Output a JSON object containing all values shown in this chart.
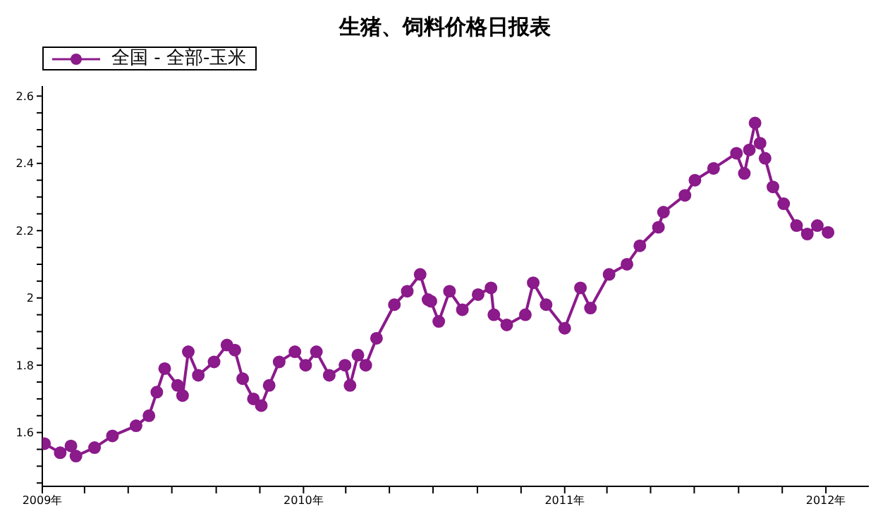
{
  "chart_data": {
    "type": "line",
    "title": "生猪、饲料价格日报表",
    "legend": "top left",
    "marker": "circle",
    "line_style": "solid",
    "grid": false,
    "xlim": [
      "2009-01-01",
      "2012-03-01"
    ],
    "xticks": [
      {
        "value": "2009-01-01",
        "label": "2009年"
      },
      {
        "value": "2009-03-01",
        "label": null
      },
      {
        "value": "2009-05-01",
        "label": null
      },
      {
        "value": "2009-07-01",
        "label": null
      },
      {
        "value": "2009-09-01",
        "label": null
      },
      {
        "value": "2009-11-01",
        "label": null
      },
      {
        "value": "2010-01-01",
        "label": "2010年"
      },
      {
        "value": "2010-03-01",
        "label": null
      },
      {
        "value": "2010-05-01",
        "label": null
      },
      {
        "value": "2010-07-01",
        "label": null
      },
      {
        "value": "2010-09-01",
        "label": null
      },
      {
        "value": "2010-11-01",
        "label": null
      },
      {
        "value": "2011-01-01",
        "label": "2011年"
      },
      {
        "value": "2011-03-01",
        "label": null
      },
      {
        "value": "2011-05-01",
        "label": null
      },
      {
        "value": "2011-07-01",
        "label": null
      },
      {
        "value": "2011-09-01",
        "label": null
      },
      {
        "value": "2011-11-01",
        "label": null
      },
      {
        "value": "2012-01-01",
        "label": "2012年"
      }
    ],
    "ylim": [
      1.44,
      2.63
    ],
    "yticks": [
      {
        "value": 1.45,
        "label": null
      },
      {
        "value": 1.5,
        "label": null
      },
      {
        "value": 1.55,
        "label": null
      },
      1.6,
      {
        "value": 1.65,
        "label": null
      },
      {
        "value": 1.7,
        "label": null
      },
      {
        "value": 1.75,
        "label": null
      },
      1.8,
      {
        "value": 1.85,
        "label": null
      },
      {
        "value": 1.9,
        "label": null
      },
      {
        "value": 1.95,
        "label": null
      },
      2.0,
      {
        "value": 2.05,
        "label": null
      },
      {
        "value": 2.1,
        "label": null
      },
      {
        "value": 2.15,
        "label": null
      },
      2.2,
      {
        "value": 2.25,
        "label": null
      },
      {
        "value": 2.3,
        "label": null
      },
      {
        "value": 2.35,
        "label": null
      },
      2.4,
      {
        "value": 2.45,
        "label": null
      },
      {
        "value": 2.5,
        "label": null
      },
      {
        "value": 2.55,
        "label": null
      },
      2.6
    ],
    "x": [
      "2009-01-04",
      "2009-01-26",
      "2009-02-10",
      "2009-02-17",
      "2009-03-15",
      "2009-04-09",
      "2009-05-12",
      "2009-05-30",
      "2009-06-10",
      "2009-06-21",
      "2009-07-09",
      "2009-07-16",
      "2009-07-24",
      "2009-08-07",
      "2009-08-29",
      "2009-09-16",
      "2009-09-27",
      "2009-10-08",
      "2009-10-23",
      "2009-11-03",
      "2009-11-14",
      "2009-11-28",
      "2009-12-20",
      "2010-01-04",
      "2010-01-19",
      "2010-02-06",
      "2010-02-28",
      "2010-03-07",
      "2010-03-18",
      "2010-03-29",
      "2010-04-13",
      "2010-05-08",
      "2010-05-26",
      "2010-06-13",
      "2010-06-24",
      "2010-06-28",
      "2010-07-09",
      "2010-07-24",
      "2010-08-11",
      "2010-09-02",
      "2010-09-20",
      "2010-09-24",
      "2010-10-12",
      "2010-11-07",
      "2010-11-18",
      "2010-12-06",
      "2011-01-01",
      "2011-01-23",
      "2011-02-06",
      "2011-03-04",
      "2011-03-29",
      "2011-04-16",
      "2011-05-12",
      "2011-05-19",
      "2011-06-18",
      "2011-07-02",
      "2011-07-28",
      "2011-08-29",
      "2011-09-09",
      "2011-09-16",
      "2011-09-24",
      "2011-10-01",
      "2011-10-08",
      "2011-10-19",
      "2011-11-03",
      "2011-11-21",
      "2011-12-06",
      "2011-12-20",
      "2012-01-04"
    ],
    "series": [
      {
        "name": "全国 - 全部-玉米",
        "color": "#8b1a8b",
        "values": [
          1.567,
          1.54,
          1.56,
          1.53,
          1.555,
          1.59,
          1.62,
          1.65,
          1.72,
          1.79,
          1.74,
          1.71,
          1.84,
          1.77,
          1.81,
          1.86,
          1.845,
          1.76,
          1.7,
          1.68,
          1.74,
          1.81,
          1.84,
          1.8,
          1.84,
          1.77,
          1.8,
          1.74,
          1.83,
          1.8,
          1.88,
          1.98,
          2.02,
          2.07,
          1.995,
          1.99,
          1.93,
          2.02,
          1.965,
          2.01,
          2.03,
          1.95,
          1.92,
          1.95,
          2.045,
          1.98,
          1.91,
          2.03,
          1.97,
          2.07,
          2.1,
          2.155,
          2.21,
          2.255,
          2.305,
          2.35,
          2.385,
          2.43,
          2.37,
          2.44,
          2.52,
          2.46,
          2.415,
          2.33,
          2.28,
          2.215,
          2.19,
          2.215,
          2.195
        ]
      }
    ]
  }
}
